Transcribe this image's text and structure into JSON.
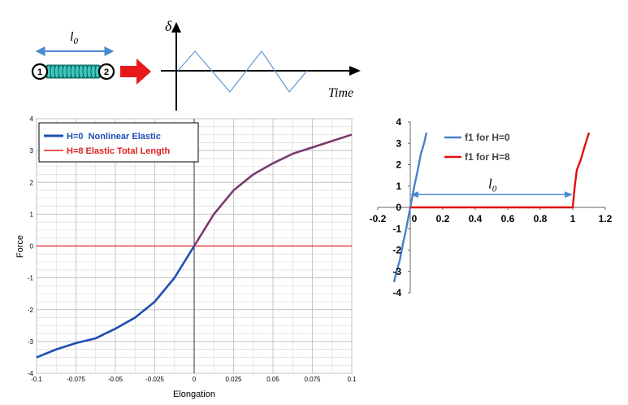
{
  "schematic": {
    "length_label": "l0",
    "node_labels": [
      "1",
      "2"
    ],
    "delta_label": "δ",
    "time_label": "Time",
    "colors": {
      "spring": "#3cc8c0",
      "arrow": "#e8191b",
      "length_arrow": "#4a8bd0",
      "triangle_wave": "#5a9ad5"
    }
  },
  "chart_data": [
    {
      "type": "line",
      "x": [
        -0.1,
        -0.0875,
        -0.075,
        -0.0625,
        -0.05,
        -0.0375,
        -0.025,
        -0.0125,
        0,
        0.0125,
        0.025,
        0.0375,
        0.05,
        0.0625,
        0.075,
        0.0875,
        0.1
      ],
      "series": [
        {
          "name": "H=0  Nonlinear Elastic",
          "color": "#1f4eb4",
          "legend_color": "#1f4eb4",
          "line_color": "#7b3a6e",
          "values": [
            -3.5,
            -3.25,
            -3.05,
            -2.9,
            -2.6,
            -2.25,
            -1.75,
            -1.0,
            0,
            1.0,
            1.75,
            2.25,
            2.6,
            2.9,
            3.1,
            3.3,
            3.5
          ]
        },
        {
          "name": "H=8 Elastic Total Length",
          "color": "#e02020",
          "values": [
            0,
            0,
            0,
            0,
            0,
            0,
            0,
            0,
            0,
            0,
            0,
            0,
            0,
            0,
            0,
            0,
            0
          ]
        }
      ],
      "xlabel": "Elongation",
      "ylabel": "Force",
      "xlim": [
        -0.1,
        0.1
      ],
      "ylim": [
        -4,
        4
      ],
      "xticks": [
        "-0.1",
        "-0.075",
        "-0.05",
        "-0.025",
        "0",
        "0.025",
        "0.05",
        "0.075",
        "0.1"
      ],
      "yticks": [
        "4",
        "3",
        "2",
        "1",
        "0",
        "-1",
        "-2",
        "-3",
        "-4"
      ],
      "grid": true,
      "legend": "top-left"
    },
    {
      "type": "line",
      "series": [
        {
          "name": "f1 for H=0",
          "color": "#4a80c8",
          "x": [
            -0.1,
            -0.085,
            -0.065,
            -0.045,
            -0.025,
            0,
            0.025,
            0.045,
            0.065,
            0.085,
            0.1
          ],
          "y": [
            -3.5,
            -3.0,
            -2.5,
            -1.7,
            -1.0,
            0,
            1.0,
            1.7,
            2.5,
            3.0,
            3.5
          ]
        },
        {
          "name": "f1 for H=8",
          "color": "#e01010",
          "x": [
            0,
            1.0,
            1.0125,
            1.025,
            1.05,
            1.075,
            1.1
          ],
          "y": [
            0,
            0,
            1.0,
            1.75,
            2.25,
            2.9,
            3.5
          ]
        }
      ],
      "annotation": "l0",
      "xlim": [
        -0.2,
        1.2
      ],
      "ylim": [
        -4,
        4
      ],
      "xticks": [
        "-0.2",
        "0",
        "0.2",
        "0.4",
        "0.6",
        "0.8",
        "1",
        "1.2"
      ],
      "yticks": [
        "4",
        "3",
        "2",
        "1",
        "0",
        "-1",
        "-2",
        "-3",
        "-4"
      ],
      "grid": false,
      "legend": "top-center"
    }
  ]
}
